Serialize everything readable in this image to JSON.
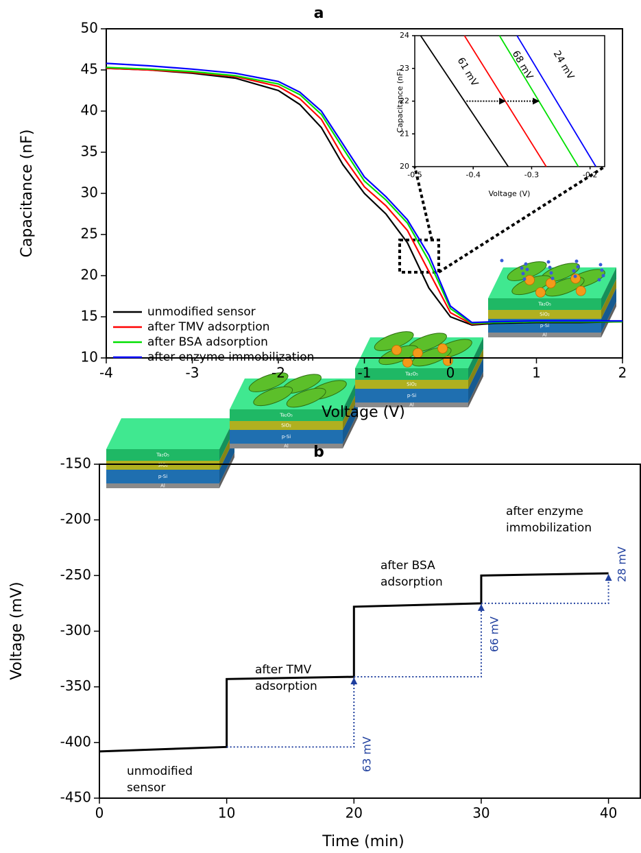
{
  "chart_data": [
    {
      "type": "line",
      "title": "a",
      "xlabel": "Voltage (V)",
      "ylabel": "Capacitance (nF)",
      "x": [
        -4,
        -3.5,
        -3,
        -2.5,
        -2,
        -1.75,
        -1.5,
        -1.25,
        -1,
        -0.75,
        -0.5,
        -0.25,
        0,
        0.25,
        0.5,
        1,
        1.5,
        2
      ],
      "series": [
        {
          "name": "unmodified sensor",
          "color": "#000000",
          "values": [
            45.2,
            45.0,
            44.6,
            44.0,
            42.5,
            40.8,
            38.0,
            33.5,
            30.0,
            27.5,
            24.0,
            18.5,
            15.0,
            14.0,
            14.2,
            14.3,
            14.3,
            14.4
          ]
        },
        {
          "name": "after TMV adsorption",
          "color": "#ff0000",
          "values": [
            45.2,
            45.0,
            44.7,
            44.2,
            43.0,
            41.5,
            39.0,
            34.5,
            30.8,
            28.5,
            25.5,
            20.5,
            15.5,
            14.1,
            14.3,
            14.4,
            14.4,
            14.4
          ]
        },
        {
          "name": "after BSA adsorption",
          "color": "#00e000",
          "values": [
            45.3,
            45.1,
            44.8,
            44.3,
            43.3,
            42.0,
            39.6,
            35.5,
            31.5,
            29.2,
            26.4,
            21.8,
            16.0,
            14.2,
            14.3,
            14.4,
            14.4,
            14.4
          ]
        },
        {
          "name": "after enzyme immobilization",
          "color": "#0000ff",
          "values": [
            45.8,
            45.5,
            45.1,
            44.6,
            43.6,
            42.3,
            40.0,
            36.0,
            32.0,
            29.6,
            26.8,
            22.5,
            16.3,
            14.3,
            14.4,
            14.5,
            14.5,
            14.5
          ]
        }
      ],
      "xlim": [
        -4,
        2
      ],
      "xticks": [
        -4,
        -3,
        -2,
        -1,
        0,
        1,
        2
      ],
      "ylim": [
        10,
        50
      ],
      "yticks": [
        10,
        15,
        20,
        25,
        30,
        35,
        40,
        45,
        50
      ],
      "legend": "lower left"
    },
    {
      "type": "line",
      "xlabel": "Voltage (V)",
      "ylabel": "Capacitance (nF)",
      "series": [
        {
          "color": "#000000",
          "x": [
            -0.49,
            -0.34
          ],
          "values": [
            24,
            20
          ]
        },
        {
          "color": "#ff0000",
          "x": [
            -0.415,
            -0.275
          ],
          "values": [
            24,
            20
          ]
        },
        {
          "color": "#00e000",
          "x": [
            -0.355,
            -0.22
          ],
          "values": [
            24,
            20
          ]
        },
        {
          "color": "#0000ff",
          "x": [
            -0.325,
            -0.19
          ],
          "values": [
            24,
            20
          ]
        }
      ],
      "xlim": [
        -0.5,
        -0.175
      ],
      "xticks": [
        -0.5,
        -0.4,
        -0.3,
        -0.2
      ],
      "ylim": [
        20,
        24
      ],
      "yticks": [
        20,
        21,
        22,
        23,
        24
      ],
      "annotations": [
        {
          "text": [
            "61 mV"
          ]
        },
        {
          "text": [
            "68 mV"
          ]
        },
        {
          "text": [
            "24 mV"
          ]
        }
      ]
    },
    {
      "type": "line",
      "title": "b",
      "xlabel": "Time (min)",
      "ylabel": "Voltage (mV)",
      "x": [
        0,
        10,
        10,
        20,
        20,
        30,
        30,
        40
      ],
      "series": [
        {
          "color": "#000000",
          "values": [
            -408,
            -404,
            -343,
            -341,
            -278,
            -275,
            -250,
            -248
          ]
        }
      ],
      "xlim": [
        0,
        42.5
      ],
      "xticks": [
        0,
        10,
        20,
        30,
        40
      ],
      "ylim": [
        -450,
        -150
      ],
      "yticks": [
        -450,
        -400,
        -350,
        -300,
        -250,
        -200,
        -150
      ],
      "annotations": [
        {
          "text": [
            "unmodified",
            "sensor"
          ]
        },
        {
          "text": [
            "after TMV",
            "adsorption"
          ]
        },
        {
          "text": [
            "after BSA",
            "adsorption"
          ]
        },
        {
          "text": [
            "after enzyme",
            "immobilization"
          ]
        },
        {
          "text": [
            "63 mV"
          ]
        },
        {
          "text": [
            "66 mV"
          ]
        },
        {
          "text": [
            "28 mV"
          ]
        }
      ],
      "layer_labels": [
        "Ta₂O₅",
        "SiO₂",
        "p-Si",
        "Al"
      ]
    }
  ]
}
